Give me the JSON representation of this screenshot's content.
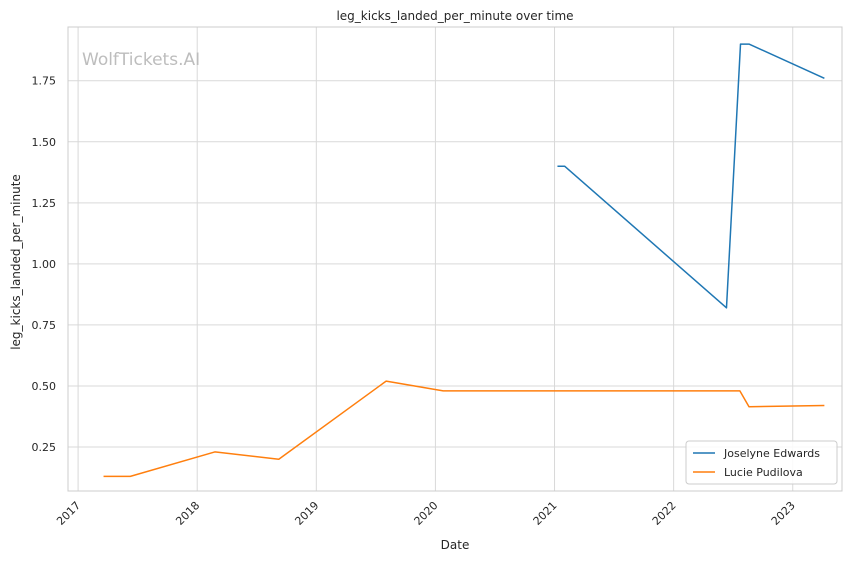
{
  "chart_data": {
    "type": "line",
    "title": "leg_kicks_landed_per_minute over time",
    "xlabel": "Date",
    "ylabel": "leg_kicks_landed_per_minute",
    "watermark": "WolfTickets.AI",
    "x_ticks": [
      "2017",
      "2018",
      "2019",
      "2020",
      "2021",
      "2022",
      "2023"
    ],
    "y_ticks": [
      "0.25",
      "0.50",
      "0.75",
      "1.00",
      "1.25",
      "1.50",
      "1.75"
    ],
    "xlim": [
      "2016-12-01",
      "2023-06-01"
    ],
    "ylim": [
      0.07,
      1.97
    ],
    "grid": true,
    "legend_position": "lower-right",
    "series": [
      {
        "name": "Joselyne Edwards",
        "color": "#1f77b4",
        "points": [
          {
            "x": "2021-01-10",
            "y": 1.4
          },
          {
            "x": "2021-02-01",
            "y": 1.4
          },
          {
            "x": "2022-06-12",
            "y": 0.82
          },
          {
            "x": "2022-07-25",
            "y": 1.9
          },
          {
            "x": "2022-08-20",
            "y": 1.9
          },
          {
            "x": "2023-04-08",
            "y": 1.76
          }
        ]
      },
      {
        "name": "Lucie Pudilova",
        "color": "#ff7f0e",
        "points": [
          {
            "x": "2017-03-20",
            "y": 0.13
          },
          {
            "x": "2017-06-10",
            "y": 0.13
          },
          {
            "x": "2018-02-24",
            "y": 0.23
          },
          {
            "x": "2018-09-08",
            "y": 0.2
          },
          {
            "x": "2019-08-03",
            "y": 0.52
          },
          {
            "x": "2020-01-25",
            "y": 0.48
          },
          {
            "x": "2022-07-23",
            "y": 0.48
          },
          {
            "x": "2022-08-20",
            "y": 0.415
          },
          {
            "x": "2023-04-08",
            "y": 0.42
          }
        ]
      }
    ]
  }
}
